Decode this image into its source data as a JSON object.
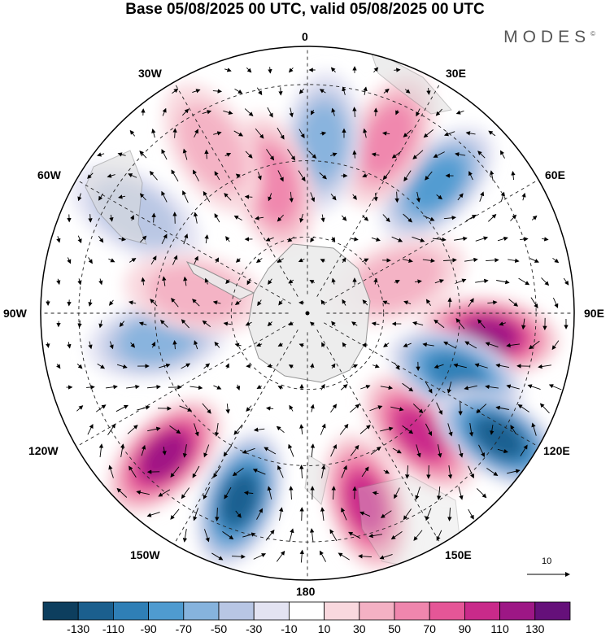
{
  "title": "Base 05/08/2025 00 UTC, valid 05/08/2025 00 UTC",
  "brand": "MODES",
  "brand_mark": "©",
  "map": {
    "projection": "south-polar-stereographic",
    "longitude_labels": {
      "lon_0": "0",
      "lon_30e": "30E",
      "lon_60e": "60E",
      "lon_90e": "90E",
      "lon_120e": "120E",
      "lon_150e": "150E",
      "lon_180": "180",
      "lon_150w": "150W",
      "lon_120w": "120W",
      "lon_90w": "90W",
      "lon_60w": "60W",
      "lon_30w": "30W"
    },
    "vector_reference_label": "10",
    "anomaly_centers": [
      {
        "lon": 97,
        "lat": -42,
        "value": 110
      },
      {
        "lon": 137,
        "lat": -47,
        "value": 90
      },
      {
        "lon": 163,
        "lat": -38,
        "value": 90
      },
      {
        "lon": 112,
        "lat": -48,
        "value": -90
      },
      {
        "lon": 123,
        "lat": -30,
        "value": -110
      },
      {
        "lon": -160,
        "lat": -38,
        "value": -110
      },
      {
        "lon": -135,
        "lat": -37,
        "value": 120
      },
      {
        "lon": 45,
        "lat": -42,
        "value": -70
      },
      {
        "lon": 25,
        "lat": -40,
        "value": 50
      },
      {
        "lon": 5,
        "lat": -45,
        "value": -50
      },
      {
        "lon": -15,
        "lat": -55,
        "value": 50
      },
      {
        "lon": -30,
        "lat": -40,
        "value": 40
      },
      {
        "lon": -60,
        "lat": -38,
        "value": -40
      },
      {
        "lon": -100,
        "lat": -50,
        "value": -50
      },
      {
        "lon": -80,
        "lat": -60,
        "value": 40
      },
      {
        "lon": 70,
        "lat": -65,
        "value": 30
      }
    ]
  },
  "colorbar": {
    "colors": [
      "#0d3e5e",
      "#1b5f8e",
      "#2f7fb6",
      "#4f9bd0",
      "#86b3dd",
      "#b8c6e4",
      "#e3e3f2",
      "#ffffff",
      "#f9d8de",
      "#f4b1c4",
      "#ef86ad",
      "#e55697",
      "#c92a8a",
      "#9d1785",
      "#65107a"
    ],
    "tick_labels": [
      "-130",
      "-110",
      "-90",
      "-70",
      "-50",
      "-30",
      "-10",
      "10",
      "30",
      "50",
      "70",
      "90",
      "110",
      "130"
    ]
  }
}
